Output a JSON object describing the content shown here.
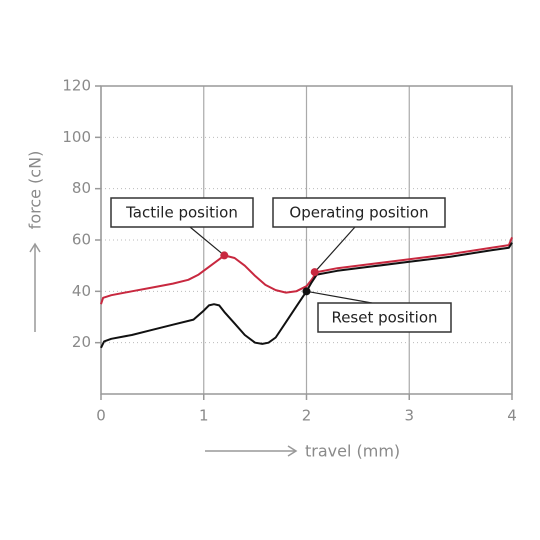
{
  "chart_data": {
    "type": "line",
    "x_label": "travel (mm)",
    "y_label": "force (cN)",
    "xlim": [
      0,
      4
    ],
    "ylim": [
      0,
      120
    ],
    "xticks": [
      0,
      1,
      2,
      3,
      4
    ],
    "yticks": [
      20,
      40,
      60,
      80,
      100,
      120
    ],
    "grid": true,
    "series": [
      {
        "color": "#c8283f",
        "x": [
          0,
          0.02,
          0.1,
          0.3,
          0.5,
          0.7,
          0.85,
          0.95,
          1.05,
          1.15,
          1.2,
          1.3,
          1.4,
          1.5,
          1.6,
          1.7,
          1.8,
          1.9,
          2.0,
          2.05,
          2.1,
          2.3,
          2.6,
          3.0,
          3.4,
          3.8,
          3.97,
          4.0
        ],
        "values": [
          35,
          37.5,
          38.5,
          40,
          41.5,
          43,
          44.5,
          46.5,
          49.5,
          52.5,
          54,
          53,
          50,
          46,
          42.5,
          40.5,
          39.5,
          40,
          42,
          44.5,
          47.5,
          49,
          50.5,
          52.5,
          54.5,
          57,
          58,
          61
        ]
      },
      {
        "color": "#111111",
        "x": [
          0,
          0.03,
          0.1,
          0.3,
          0.5,
          0.7,
          0.9,
          1.0,
          1.05,
          1.1,
          1.15,
          1.2,
          1.3,
          1.4,
          1.5,
          1.57,
          1.63,
          1.7,
          1.8,
          1.9,
          2.0,
          2.05,
          2.1,
          2.3,
          2.6,
          3.0,
          3.4,
          3.8,
          3.97,
          4.0
        ],
        "values": [
          18,
          20.5,
          21.5,
          23,
          25,
          27,
          29,
          32.5,
          34.5,
          35,
          34.5,
          32,
          27.5,
          23,
          20,
          19.5,
          20,
          22,
          28,
          34,
          40,
          43.5,
          46.5,
          48,
          49.5,
          51.5,
          53.5,
          56,
          57,
          59
        ]
      }
    ],
    "annotations": [
      {
        "text": "Tactile position",
        "x": 1.2,
        "y": 54,
        "color": "#c8283f"
      },
      {
        "text": "Operating position",
        "x": 2.08,
        "y": 47.5,
        "color": "#c8283f"
      },
      {
        "text": "Reset position",
        "x": 2.0,
        "y": 40,
        "color": "#111111"
      }
    ]
  }
}
